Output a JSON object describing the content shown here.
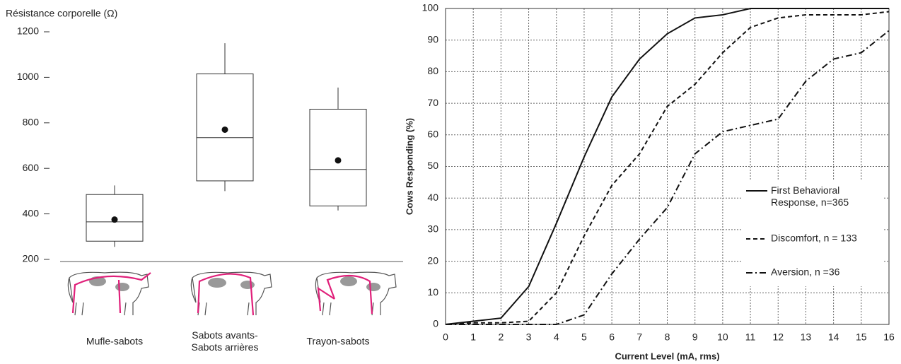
{
  "chart_data": [
    {
      "type": "box",
      "title": "Résistance corporelle (Ω)",
      "categories": [
        "Mufle-sabots",
        "Sabots avants-\nSabots arrières",
        "Trayon-sabots"
      ],
      "whisker_high": [
        525,
        1150,
        955
      ],
      "q3": [
        485,
        1015,
        860
      ],
      "median": [
        365,
        735,
        595
      ],
      "q1": [
        280,
        545,
        435
      ],
      "whisker_low": [
        255,
        500,
        415
      ],
      "mean": [
        375,
        770,
        635
      ],
      "ylim": [
        200,
        1200
      ],
      "yticks": [
        200,
        400,
        600,
        800,
        1000,
        1200
      ]
    },
    {
      "type": "line",
      "x_label": "Current Level (mA, rms)",
      "y_label": "Cows Responding (%)",
      "x": [
        0,
        1,
        2,
        3,
        4,
        5,
        6,
        7,
        8,
        9,
        10,
        11,
        12,
        13,
        14,
        15,
        16
      ],
      "series": [
        {
          "name": "First Behavioral\nResponse, n=365",
          "color": "#111",
          "dash": "solid",
          "values": [
            0,
            1,
            2,
            12,
            32,
            53,
            72,
            84,
            92,
            97,
            98,
            100,
            100,
            100,
            100,
            100,
            100
          ]
        },
        {
          "name": "Discomfort, n = 133",
          "color": "#111",
          "dash": "dashed",
          "values": [
            0,
            0.5,
            0.5,
            1,
            10,
            28,
            44,
            54,
            69,
            76,
            86,
            94,
            97,
            98,
            98,
            98,
            99
          ]
        },
        {
          "name": "Aversion, n =36",
          "color": "#111",
          "dash": "dashdot",
          "values": [
            0,
            0,
            0,
            0,
            0,
            3,
            16,
            27,
            37,
            54,
            61,
            63,
            65,
            77,
            84,
            86,
            93
          ]
        }
      ],
      "xlim": [
        0,
        16
      ],
      "xticks": [
        0,
        1,
        2,
        3,
        4,
        5,
        6,
        7,
        8,
        9,
        10,
        11,
        12,
        13,
        14,
        15,
        16
      ],
      "ylim": [
        0,
        100
      ],
      "yticks": [
        0,
        10,
        20,
        30,
        40,
        50,
        60,
        70,
        80,
        90,
        100
      ],
      "grid": true
    }
  ]
}
